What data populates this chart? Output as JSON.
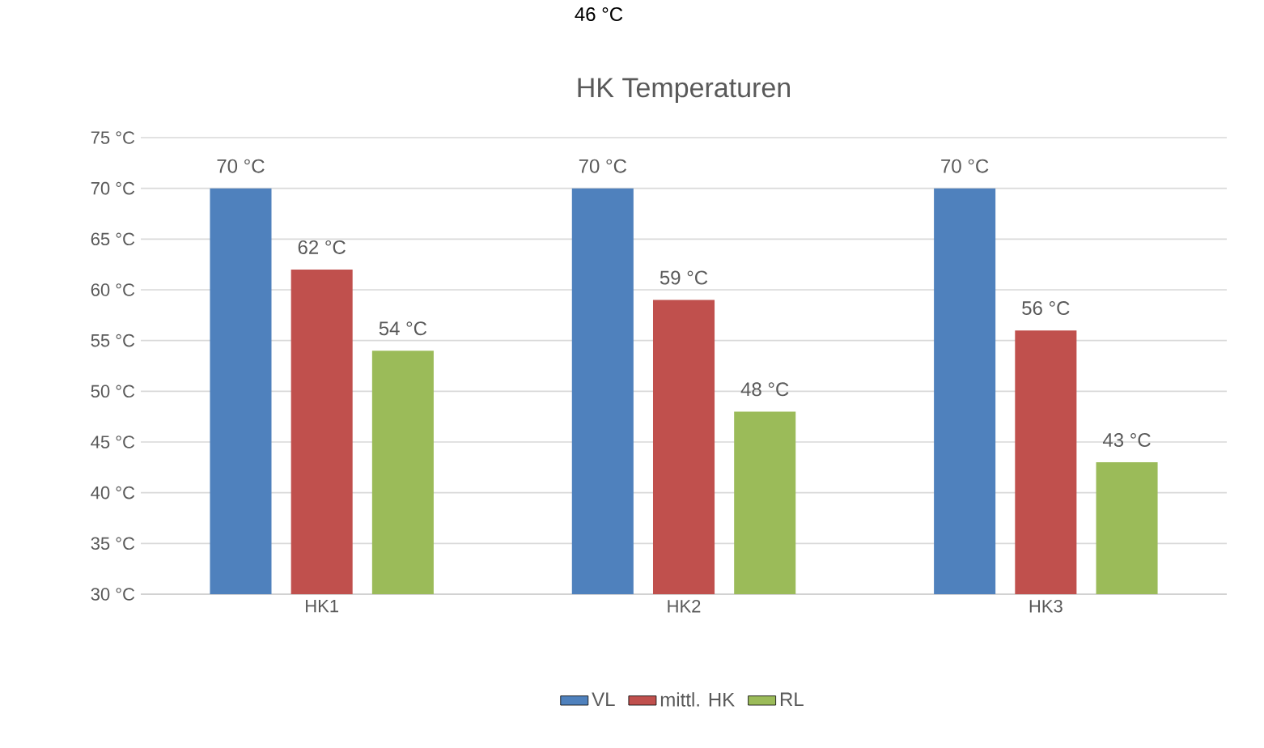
{
  "chart_data": {
    "type": "bar",
    "title": "HK Temperaturen",
    "categories": [
      "HK1",
      "HK2",
      "HK3"
    ],
    "series": [
      {
        "name": "VL",
        "color": "#4f81bd",
        "values": [
          70,
          70,
          70
        ],
        "value_labels": [
          "70 °C",
          "70 °C",
          "70 °C"
        ]
      },
      {
        "name": "mittl. HK",
        "color": "#c0504d",
        "values": [
          62,
          59,
          56
        ],
        "value_labels": [
          "62 °C",
          "59 °C",
          "56 °C"
        ]
      },
      {
        "name": "RL",
        "color": "#9bbb59",
        "values": [
          54,
          48,
          43
        ],
        "value_labels": [
          "54 °C",
          "48 °C",
          "43 °C"
        ]
      }
    ],
    "ylim": [
      30,
      75
    ],
    "yticks": [
      {
        "value": 30,
        "label": "30 °C"
      },
      {
        "value": 35,
        "label": "35 °C"
      },
      {
        "value": 40,
        "label": "40 °C"
      },
      {
        "value": 45,
        "label": "45 °C"
      },
      {
        "value": 50,
        "label": "50 °C"
      },
      {
        "value": 55,
        "label": "55 °C"
      },
      {
        "value": 60,
        "label": "60 °C"
      },
      {
        "value": 65,
        "label": "65 °C"
      },
      {
        "value": 70,
        "label": "70 °C"
      },
      {
        "value": 75,
        "label": "75 °C"
      }
    ],
    "grid": "y",
    "legend": "bottom",
    "annotations": [
      "46 °C"
    ]
  }
}
